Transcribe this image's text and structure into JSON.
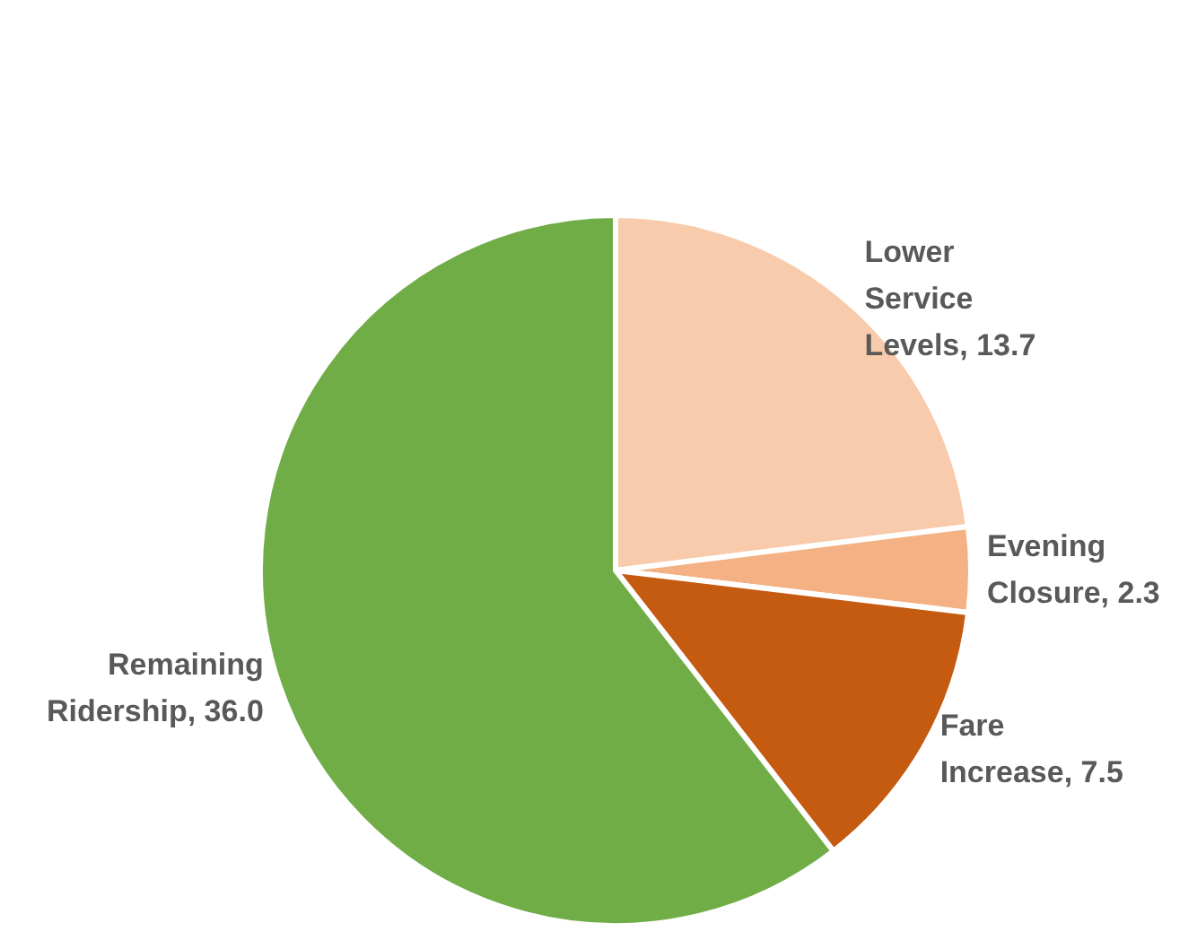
{
  "chart_data": {
    "type": "pie",
    "categories": [
      "Lower Service Levels",
      "Evening Closure",
      "Fare Increase",
      "Remaining Ridership"
    ],
    "values": [
      13.7,
      2.3,
      7.5,
      36.0
    ],
    "value_labels": [
      "13.7",
      "2.3",
      "7.5",
      "36.0"
    ],
    "colors": [
      "#f8cbad",
      "#f4b183",
      "#c55a11",
      "#70ad47"
    ],
    "legend": false
  }
}
